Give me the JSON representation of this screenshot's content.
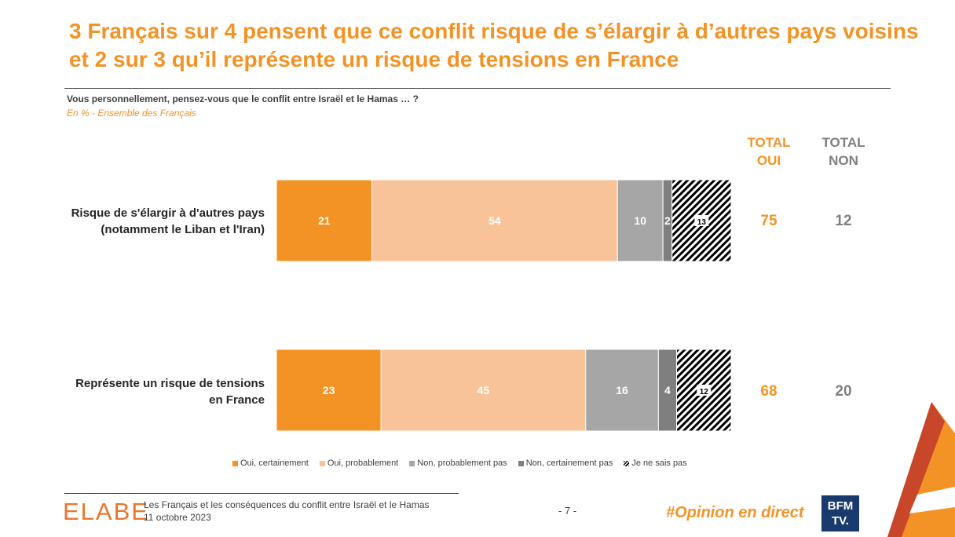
{
  "title": {
    "line1": "3 Français sur 4 pensent que ce conflit risque de s’élargir à d’autres pays voisins",
    "line2": "et 2 sur 3 qu’il représente un risque de tensions en France"
  },
  "question": "Vous personnellement, pensez-vous que le conflit entre Israël et le Hamas … ?",
  "subtitle": "En % - Ensemble des Français",
  "columns": {
    "oui_line1": "TOTAL",
    "oui_line2": "OUI",
    "non_line1": "TOTAL",
    "non_line2": "NON"
  },
  "colors": {
    "oui_certainement": "#f39325",
    "oui_probablement": "#f9c399",
    "non_probablement_pas": "#a6a6a6",
    "non_certainement_pas": "#7f7f7f",
    "accent": "#f39325"
  },
  "chart_data": {
    "type": "bar",
    "orientation": "horizontal",
    "stacked": true,
    "unit": "%",
    "categories": [
      "Risque de s'élargir à d'autres pays (notamment le Liban et l'Iran)",
      "Représente un risque de tensions en France"
    ],
    "series": [
      {
        "name": "Oui, certainement",
        "values": [
          21,
          23
        ]
      },
      {
        "name": "Oui, probablement",
        "values": [
          54,
          45
        ]
      },
      {
        "name": "Non, probablement pas",
        "values": [
          10,
          16
        ]
      },
      {
        "name": "Non, certainement pas",
        "values": [
          2,
          4
        ]
      },
      {
        "name": "Je ne sais pas",
        "values": [
          13,
          12
        ]
      }
    ],
    "totals": {
      "oui": [
        75,
        68
      ],
      "non": [
        12,
        20
      ]
    },
    "legend": "bottom"
  },
  "rows": [
    {
      "label_line1": "Risque de s'élargir à d'autres pays",
      "label_line2": "(notamment le Liban et l'Iran)",
      "total_oui": "75",
      "total_non": "12"
    },
    {
      "label_line1": "Représente un risque de tensions",
      "label_line2": "en France",
      "total_oui": "68",
      "total_non": "20"
    }
  ],
  "legend": [
    "Oui, certainement",
    "Oui, probablement",
    "Non, probablement pas",
    "Non, certainement pas",
    "Je ne sais pas"
  ],
  "footer": {
    "logo": "ELABE",
    "line1": "Les Français et les conséquences du conflit entre Israël et le Hamas",
    "line2": "11 octobre 2023",
    "page": "- 7 -",
    "hashtag": "#Opinion en direct",
    "bfm_line1": "BFM",
    "bfm_line2": "TV."
  }
}
